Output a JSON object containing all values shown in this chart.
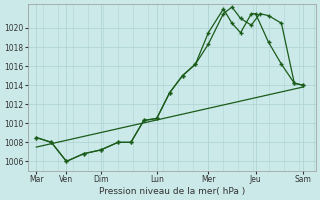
{
  "xlabel": "Pression niveau de la mer( hPa )",
  "background_color": "#cce9e9",
  "grid_color": "#b0d4d4",
  "line_color": "#1a5c1a",
  "ylim": [
    1005.0,
    1022.5
  ],
  "yticks": [
    1006,
    1008,
    1010,
    1012,
    1014,
    1016,
    1018,
    1020
  ],
  "day_labels": [
    "Mar",
    "Ven",
    "Dim",
    "",
    "Lun",
    "",
    "Mer",
    "",
    "Jeu",
    "",
    "",
    "Sam"
  ],
  "day_tick_positions": [
    0,
    1,
    2,
    2.5,
    3,
    3.5,
    4,
    4.5,
    5,
    5.5,
    5.8,
    6.2
  ],
  "xtick_labels": [
    "Mar",
    "Ven",
    "Dim",
    "Lun",
    "Mer",
    "Jeu",
    "Sam"
  ],
  "xtick_positions": [
    0,
    0.7,
    1.5,
    2.8,
    4.0,
    5.1,
    6.2
  ],
  "xlim": [
    -0.2,
    6.5
  ],
  "line1_x": [
    0.0,
    0.35,
    0.7,
    1.1,
    1.5,
    1.9,
    2.2,
    2.5,
    2.8,
    3.1,
    3.4,
    3.7,
    4.0,
    4.35,
    4.55,
    4.75,
    5.0,
    5.2,
    5.4,
    5.7,
    6.0,
    6.2
  ],
  "line1_y": [
    1008.5,
    1008.0,
    1006.0,
    1006.8,
    1007.2,
    1008.0,
    1008.0,
    1010.3,
    1010.5,
    1013.2,
    1015.0,
    1016.2,
    1018.3,
    1021.5,
    1022.2,
    1021.0,
    1020.3,
    1021.5,
    1021.3,
    1020.5,
    1014.2,
    1014.0
  ],
  "line2_x": [
    0.0,
    0.35,
    0.7,
    1.1,
    1.5,
    1.9,
    2.2,
    2.5,
    2.8,
    3.1,
    3.4,
    3.7,
    4.0,
    4.35,
    4.55,
    4.75,
    5.0,
    5.1,
    5.4,
    5.7,
    6.0,
    6.2
  ],
  "line2_y": [
    1008.5,
    1008.0,
    1006.0,
    1006.8,
    1007.2,
    1008.0,
    1008.0,
    1010.3,
    1010.5,
    1013.2,
    1015.0,
    1016.2,
    1019.5,
    1022.0,
    1020.5,
    1019.5,
    1021.5,
    1021.5,
    1018.5,
    1016.2,
    1014.2,
    1014.0
  ],
  "line3_x": [
    0.0,
    6.2
  ],
  "line3_y": [
    1007.5,
    1013.8
  ]
}
